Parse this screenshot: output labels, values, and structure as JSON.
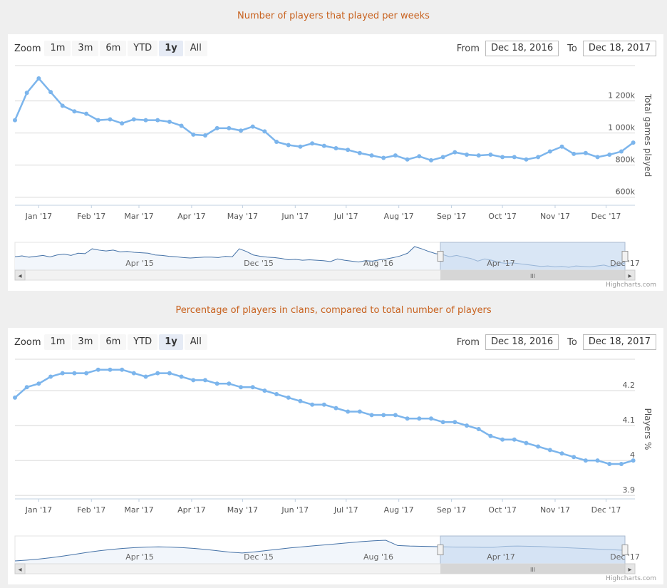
{
  "colors": {
    "title": "#c8621f",
    "series": "#7cb5ec",
    "navigator_mask": "#c5d9f0"
  },
  "chart_data": [
    {
      "type": "line",
      "title": "Number of players that played per weeks",
      "ylabel": "Total games played",
      "ylim": [
        550000,
        1420000
      ],
      "yticks": [
        "600k",
        "800k",
        "1 000k",
        "1 200k"
      ],
      "ytick_values": [
        600000,
        800000,
        1000000,
        1200000
      ],
      "x_start": "2016-12-18",
      "x_end": "2017-12-18",
      "xticks": [
        "Jan '17",
        "Feb '17",
        "Mar '17",
        "Apr '17",
        "May '17",
        "Jun '17",
        "Jul '17",
        "Aug '17",
        "Sep '17",
        "Oct '17",
        "Nov '17",
        "Dec '17"
      ],
      "grid": true,
      "series": [
        {
          "x": [
            "2016-12-18",
            "2016-12-25",
            "2017-01-01",
            "2017-01-08",
            "2017-01-15",
            "2017-01-22",
            "2017-01-29",
            "2017-02-05",
            "2017-02-12",
            "2017-02-19",
            "2017-02-26",
            "2017-03-05",
            "2017-03-12",
            "2017-03-19",
            "2017-03-26",
            "2017-04-02",
            "2017-04-09",
            "2017-04-16",
            "2017-04-23",
            "2017-04-30",
            "2017-05-07",
            "2017-05-14",
            "2017-05-21",
            "2017-05-28",
            "2017-06-04",
            "2017-06-11",
            "2017-06-18",
            "2017-06-25",
            "2017-07-02",
            "2017-07-09",
            "2017-07-16",
            "2017-07-23",
            "2017-07-30",
            "2017-08-06",
            "2017-08-13",
            "2017-08-20",
            "2017-08-27",
            "2017-09-03",
            "2017-09-10",
            "2017-09-17",
            "2017-09-24",
            "2017-10-01",
            "2017-10-08",
            "2017-10-15",
            "2017-10-22",
            "2017-10-29",
            "2017-11-05",
            "2017-11-12",
            "2017-11-19",
            "2017-11-26",
            "2017-12-03",
            "2017-12-10",
            "2017-12-17"
          ],
          "values": [
            1080000,
            1250000,
            1340000,
            1255000,
            1170000,
            1135000,
            1120000,
            1080000,
            1085000,
            1060000,
            1085000,
            1080000,
            1080000,
            1070000,
            1045000,
            990000,
            985000,
            1030000,
            1030000,
            1015000,
            1040000,
            1010000,
            945000,
            925000,
            915000,
            935000,
            920000,
            905000,
            895000,
            875000,
            860000,
            845000,
            860000,
            835000,
            855000,
            830000,
            850000,
            880000,
            865000,
            860000,
            865000,
            850000,
            850000,
            835000,
            850000,
            885000,
            915000,
            870000,
            875000,
            850000,
            865000,
            885000,
            940000
          ]
        }
      ],
      "navigator": {
        "xticks": [
          "Apr '15",
          "Dec '15",
          "Aug '16",
          "Apr '17",
          "Dec '17"
        ],
        "values": [
          1080000,
          1100000,
          1070000,
          1090000,
          1110000,
          1075000,
          1120000,
          1140000,
          1110000,
          1160000,
          1150000,
          1260000,
          1230000,
          1210000,
          1230000,
          1190000,
          1200000,
          1180000,
          1170000,
          1160000,
          1120000,
          1110000,
          1090000,
          1080000,
          1060000,
          1050000,
          1060000,
          1070000,
          1070000,
          1060000,
          1090000,
          1080000,
          1260000,
          1200000,
          1120000,
          1090000,
          1070000,
          1060000,
          1040000,
          1010000,
          1020000,
          1000000,
          1010000,
          1000000,
          990000,
          970000,
          1030000,
          1000000,
          980000,
          960000,
          990000,
          980000,
          1010000,
          1030000,
          1060000,
          1100000,
          1160000,
          1310000,
          1260000,
          1200000,
          1150000,
          1130000,
          1080000,
          1110000,
          1070000,
          1040000,
          980000,
          1030000,
          1000000,
          950000,
          930000,
          940000,
          920000,
          900000,
          880000,
          860000,
          870000,
          850000,
          860000,
          840000,
          870000,
          860000,
          850000,
          870000,
          890000,
          850000,
          880000,
          940000
        ]
      }
    },
    {
      "type": "line",
      "title": "Percentage of players in clans, compared to total number of players",
      "ylabel": "Players %",
      "ylim": [
        3.89,
        4.29
      ],
      "yticks": [
        "3.9",
        "4",
        "4.1",
        "4.2"
      ],
      "ytick_values": [
        3.9,
        4.0,
        4.1,
        4.2
      ],
      "x_start": "2016-12-18",
      "x_end": "2017-12-18",
      "xticks": [
        "Jan '17",
        "Feb '17",
        "Mar '17",
        "Apr '17",
        "May '17",
        "Jun '17",
        "Jul '17",
        "Aug '17",
        "Sep '17",
        "Oct '17",
        "Nov '17",
        "Dec '17"
      ],
      "grid": true,
      "series": [
        {
          "x": [
            "2016-12-18",
            "2016-12-25",
            "2017-01-01",
            "2017-01-08",
            "2017-01-15",
            "2017-01-22",
            "2017-01-29",
            "2017-02-05",
            "2017-02-12",
            "2017-02-19",
            "2017-02-26",
            "2017-03-05",
            "2017-03-12",
            "2017-03-19",
            "2017-03-26",
            "2017-04-02",
            "2017-04-09",
            "2017-04-16",
            "2017-04-23",
            "2017-04-30",
            "2017-05-07",
            "2017-05-14",
            "2017-05-21",
            "2017-05-28",
            "2017-06-04",
            "2017-06-11",
            "2017-06-18",
            "2017-06-25",
            "2017-07-02",
            "2017-07-09",
            "2017-07-16",
            "2017-07-23",
            "2017-07-30",
            "2017-08-06",
            "2017-08-13",
            "2017-08-20",
            "2017-08-27",
            "2017-09-03",
            "2017-09-10",
            "2017-09-17",
            "2017-09-24",
            "2017-10-01",
            "2017-10-08",
            "2017-10-15",
            "2017-10-22",
            "2017-10-29",
            "2017-11-05",
            "2017-11-12",
            "2017-11-19",
            "2017-11-26",
            "2017-12-03",
            "2017-12-10",
            "2017-12-17"
          ],
          "values": [
            4.18,
            4.21,
            4.22,
            4.24,
            4.25,
            4.25,
            4.25,
            4.26,
            4.26,
            4.26,
            4.25,
            4.24,
            4.25,
            4.25,
            4.24,
            4.23,
            4.23,
            4.22,
            4.22,
            4.21,
            4.21,
            4.2,
            4.19,
            4.18,
            4.17,
            4.16,
            4.16,
            4.15,
            4.14,
            4.14,
            4.13,
            4.13,
            4.13,
            4.12,
            4.12,
            4.12,
            4.11,
            4.11,
            4.1,
            4.09,
            4.07,
            4.06,
            4.06,
            4.05,
            4.04,
            4.03,
            4.02,
            4.01,
            4.0,
            4.0,
            3.99,
            3.99,
            4.0
          ]
        }
      ],
      "navigator": {
        "xticks": [
          "Apr '15",
          "Dec '15",
          "Aug '16",
          "Apr '17",
          "Dec '17"
        ],
        "values": [
          3.4,
          3.43,
          3.47,
          3.52,
          3.58,
          3.65,
          3.72,
          3.78,
          3.83,
          3.87,
          3.9,
          3.92,
          3.93,
          3.92,
          3.9,
          3.87,
          3.83,
          3.78,
          3.73,
          3.7,
          3.74,
          3.79,
          3.84,
          3.89,
          3.93,
          3.97,
          4.01,
          4.05,
          4.09,
          4.13,
          4.16,
          4.18,
          3.98,
          3.96,
          3.95,
          3.94,
          3.93,
          3.92,
          3.92,
          3.91,
          3.91,
          3.95,
          3.96,
          3.95,
          3.94,
          3.92,
          3.9,
          3.88,
          3.86,
          3.84,
          3.82,
          3.8
        ]
      }
    }
  ],
  "range_selector": {
    "zoom_label": "Zoom",
    "buttons": [
      "1m",
      "3m",
      "6m",
      "YTD",
      "1y",
      "All"
    ],
    "active": "1y",
    "from_label": "From",
    "from_value": "Dec 18, 2016",
    "to_label": "To",
    "to_value": "Dec 18, 2017"
  },
  "scrollbar": {
    "left_arrow": "◂",
    "right_arrow": "▸",
    "grip": "III"
  },
  "credits": "Highcharts.com"
}
